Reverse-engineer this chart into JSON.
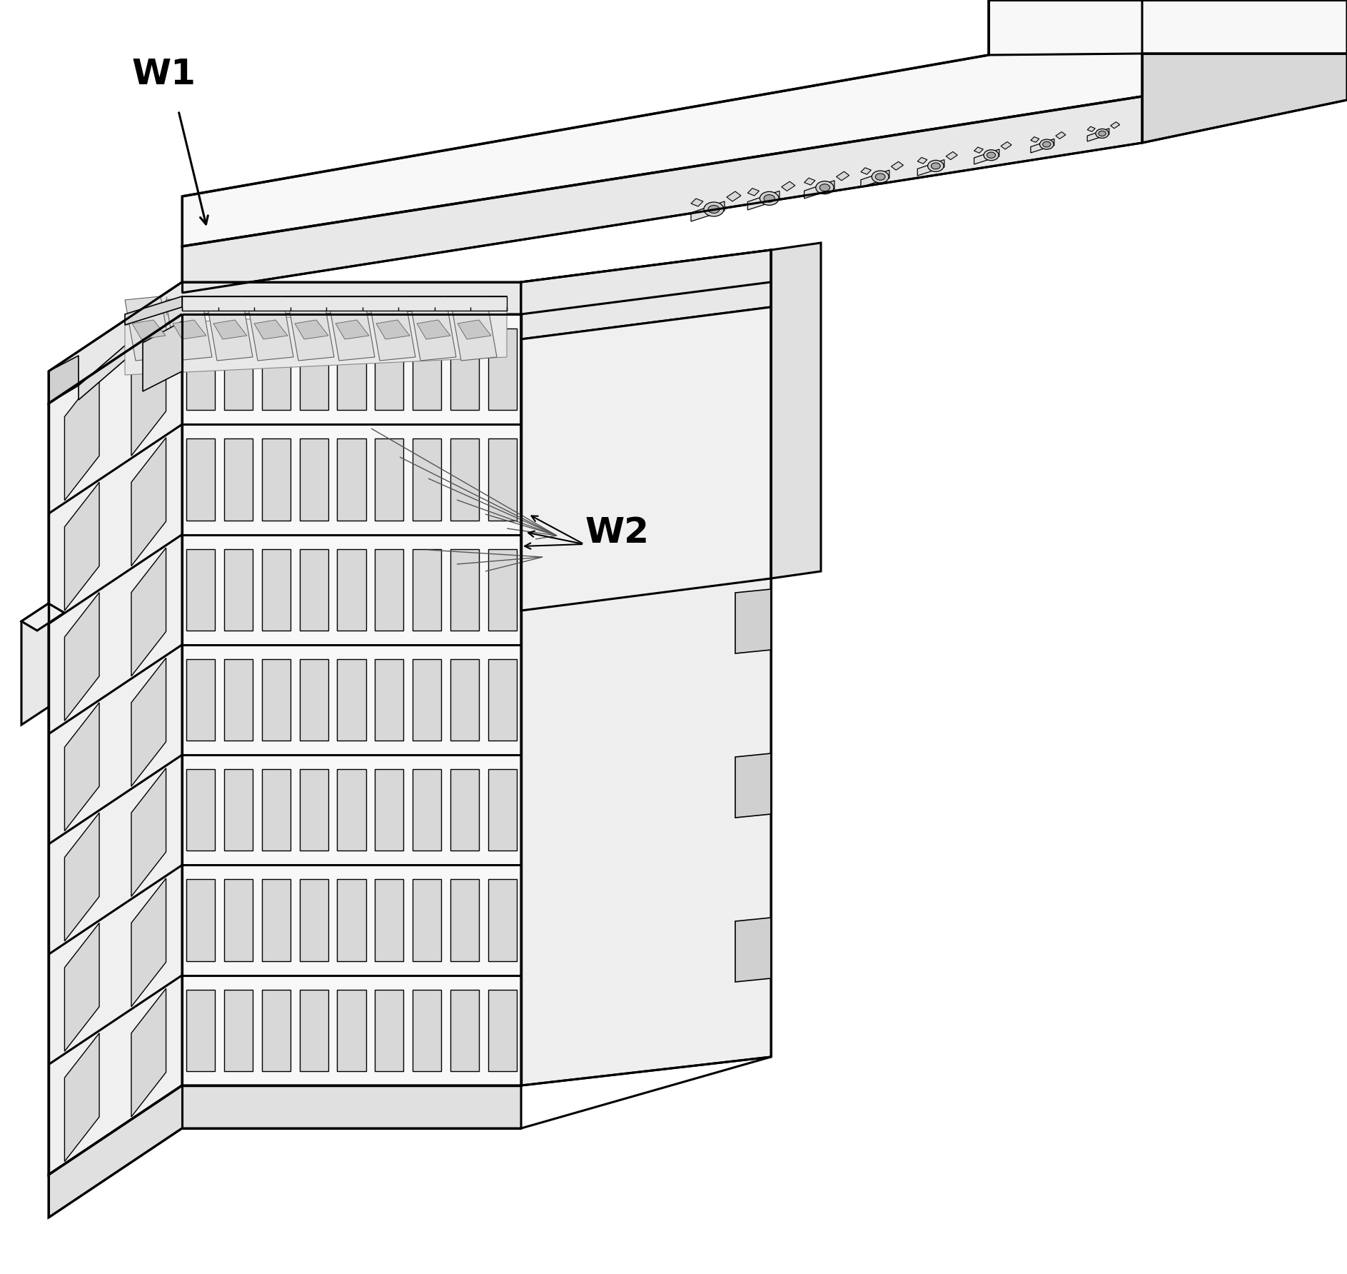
{
  "background_color": "#ffffff",
  "line_color": "#000000",
  "label_W1": "W1",
  "label_W2": "W2",
  "figsize": [
    18.87,
    17.84
  ],
  "dpi": 100
}
